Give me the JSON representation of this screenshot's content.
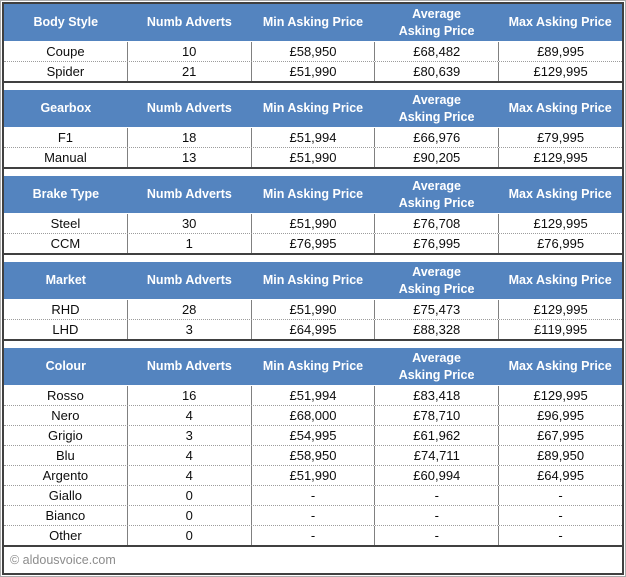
{
  "colors": {
    "header_bg": "#5484BF",
    "header_text": "#FFFFFF",
    "body_text": "#0D0D0D",
    "footer_text": "#8C8C8C",
    "table_border": "#404040"
  },
  "footer": {
    "copyright": "© aldousvoice.com"
  },
  "chart_data": [
    {
      "type": "table",
      "category": "Body Style",
      "columns": [
        "Body Style",
        "Numb Adverts",
        "Min Asking Price",
        "Average\nAsking Price",
        "Max Asking Price"
      ],
      "rows": [
        [
          "Coupe",
          "10",
          "£58,950",
          "£68,482",
          "£89,995"
        ],
        [
          "Spider",
          "21",
          "£51,990",
          "£80,639",
          "£129,995"
        ]
      ]
    },
    {
      "type": "table",
      "category": "Gearbox",
      "columns": [
        "Gearbox",
        "Numb Adverts",
        "Min Asking Price",
        "Average\nAsking Price",
        "Max Asking Price"
      ],
      "rows": [
        [
          "F1",
          "18",
          "£51,994",
          "£66,976",
          "£79,995"
        ],
        [
          "Manual",
          "13",
          "£51,990",
          "£90,205",
          "£129,995"
        ]
      ]
    },
    {
      "type": "table",
      "category": "Brake Type",
      "columns": [
        "Brake Type",
        "Numb Adverts",
        "Min Asking Price",
        "Average\nAsking Price",
        "Max Asking Price"
      ],
      "rows": [
        [
          "Steel",
          "30",
          "£51,990",
          "£76,708",
          "£129,995"
        ],
        [
          "CCM",
          "1",
          "£76,995",
          "£76,995",
          "£76,995"
        ]
      ]
    },
    {
      "type": "table",
      "category": "Market",
      "columns": [
        "Market",
        "Numb Adverts",
        "Min Asking Price",
        "Average\nAsking Price",
        "Max Asking Price"
      ],
      "rows": [
        [
          "RHD",
          "28",
          "£51,990",
          "£75,473",
          "£129,995"
        ],
        [
          "LHD",
          "3",
          "£64,995",
          "£88,328",
          "£119,995"
        ]
      ]
    },
    {
      "type": "table",
      "category": "Colour",
      "columns": [
        "Colour",
        "Numb Adverts",
        "Min Asking Price",
        "Average\nAsking Price",
        "Max Asking Price"
      ],
      "rows": [
        [
          "Rosso",
          "16",
          "£51,994",
          "£83,418",
          "£129,995"
        ],
        [
          "Nero",
          "4",
          "£68,000",
          "£78,710",
          "£96,995"
        ],
        [
          "Grigio",
          "3",
          "£54,995",
          "£61,962",
          "£67,995"
        ],
        [
          "Blu",
          "4",
          "£58,950",
          "£74,711",
          "£89,950"
        ],
        [
          "Argento",
          "4",
          "£51,990",
          "£60,994",
          "£64,995"
        ],
        [
          "Giallo",
          "0",
          "-",
          "-",
          "-"
        ],
        [
          "Bianco",
          "0",
          "-",
          "-",
          "-"
        ],
        [
          "Other",
          "0",
          "-",
          "-",
          "-"
        ]
      ]
    }
  ]
}
